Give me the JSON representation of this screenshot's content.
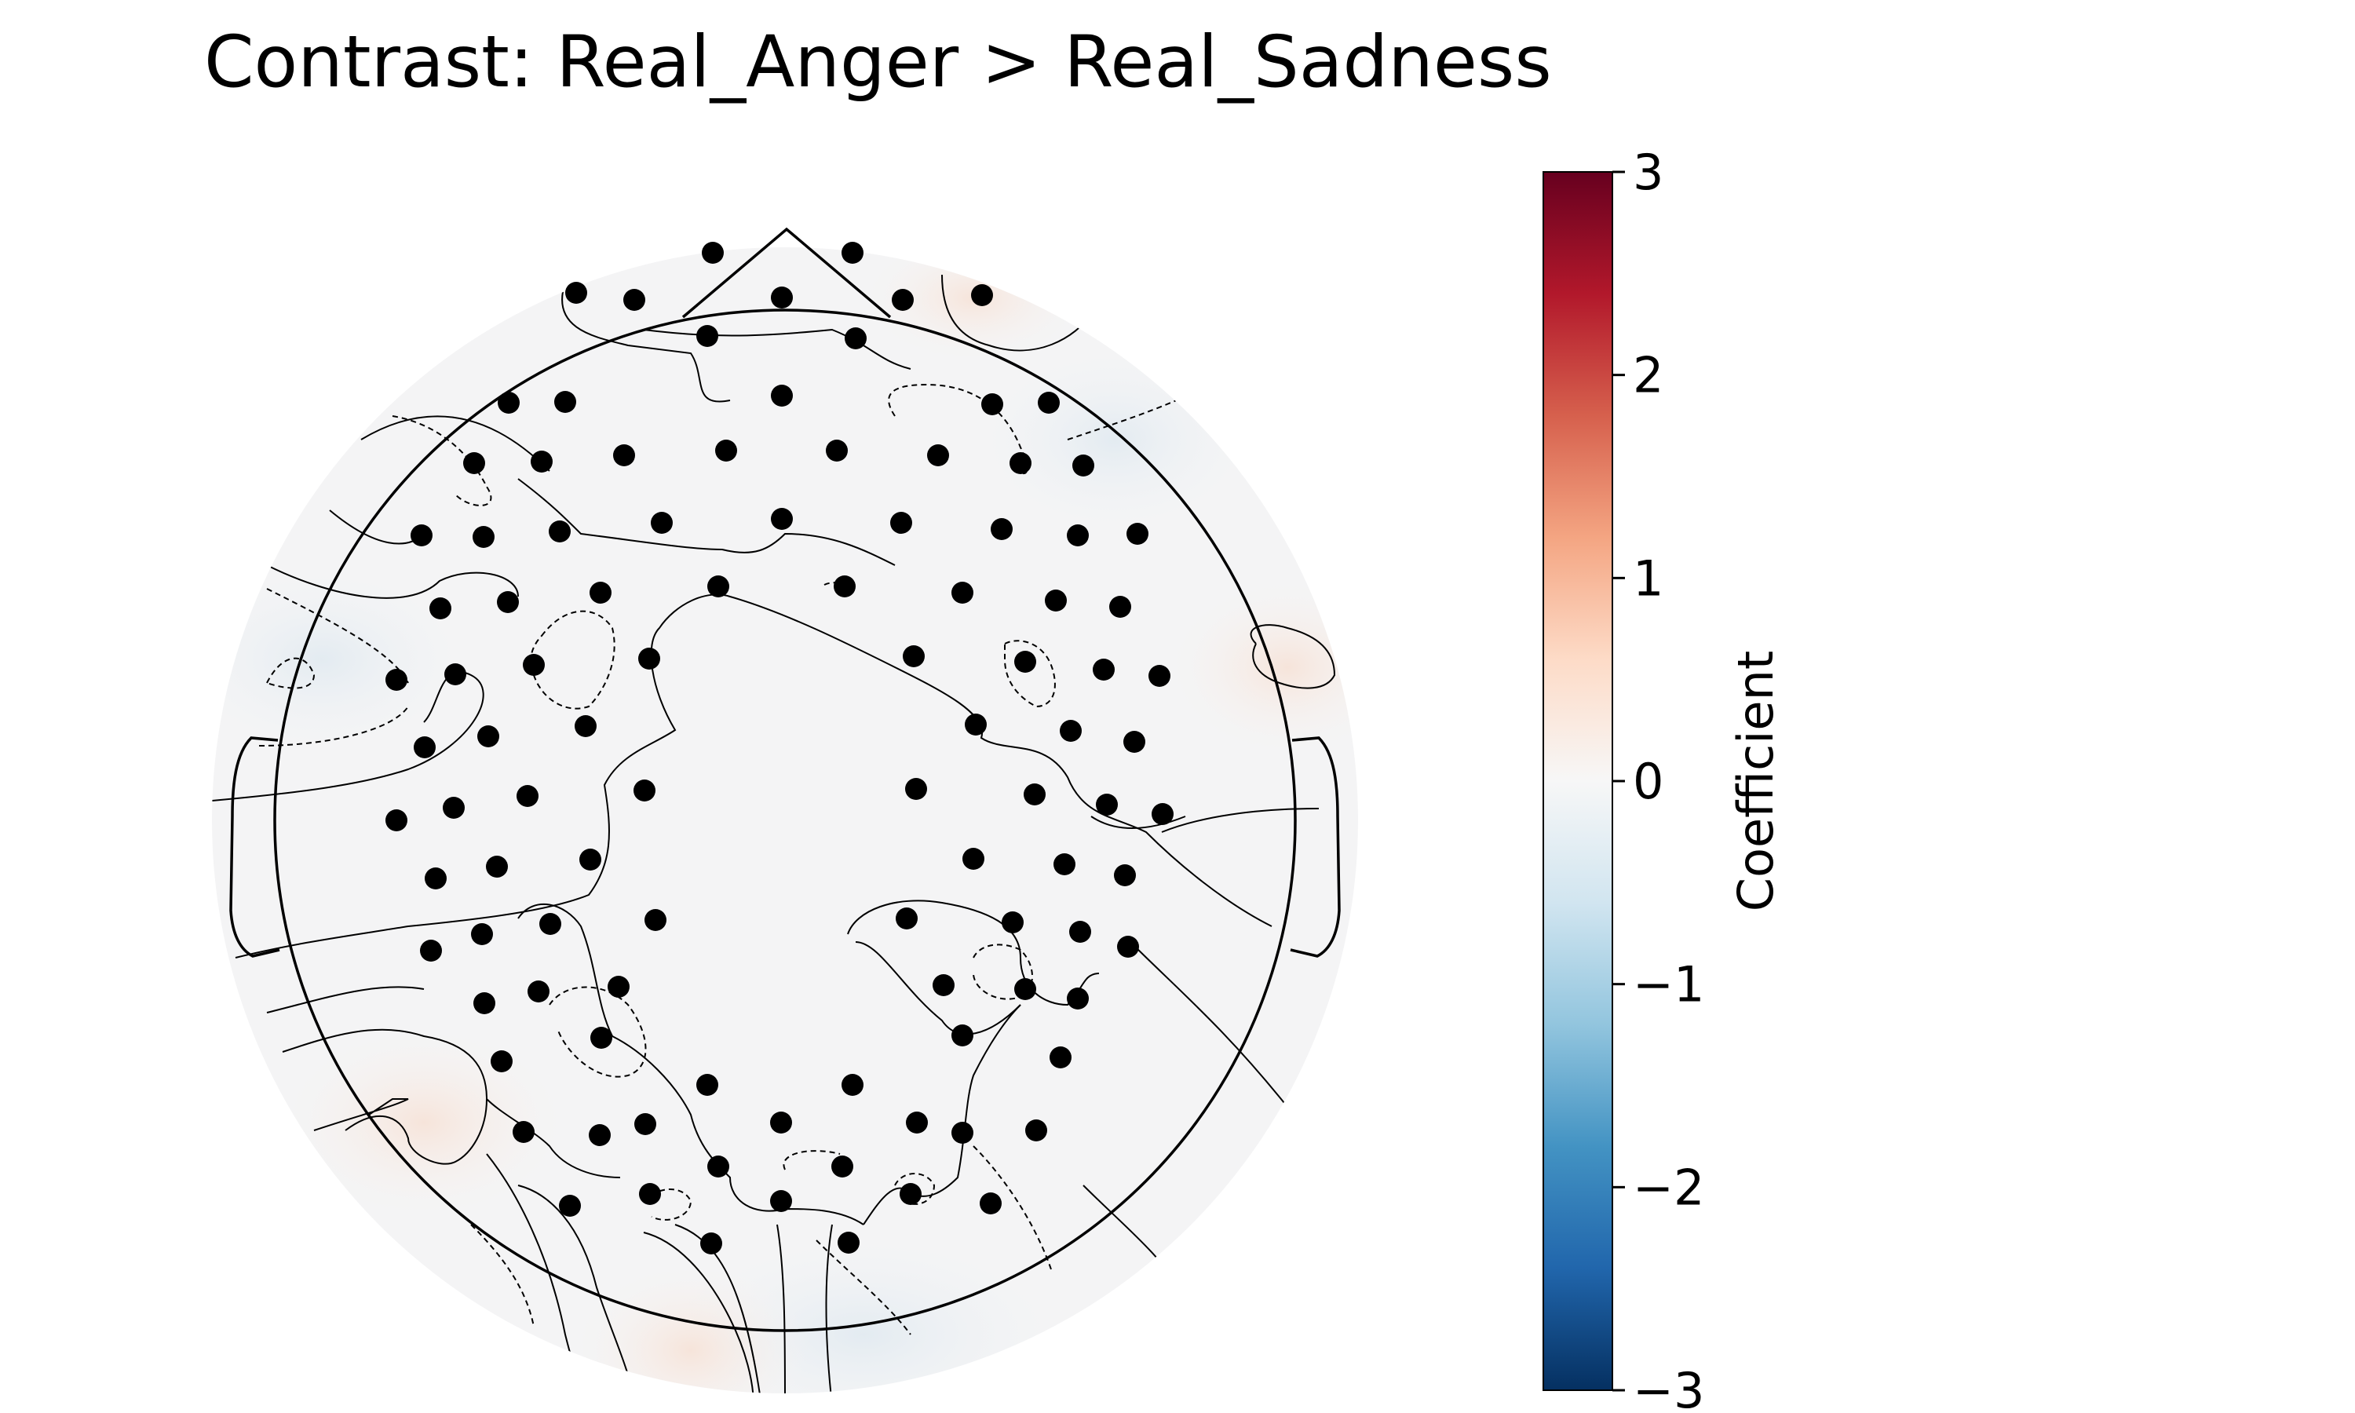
{
  "chart_data": {
    "type": "heatmap",
    "subtype": "eeg-topomap",
    "title": "Contrast: Real_Anger > Real_Sadness",
    "colorbar": {
      "label": "Coefficient",
      "colormap": "RdBu_r",
      "vmin": -3,
      "vmax": 3,
      "ticks": [
        {
          "value": 3,
          "label": "3"
        },
        {
          "value": 2,
          "label": "2"
        },
        {
          "value": 1,
          "label": "1"
        },
        {
          "value": 0,
          "label": "0"
        },
        {
          "value": -1,
          "label": "−1"
        },
        {
          "value": -2,
          "label": "−2"
        },
        {
          "value": -3,
          "label": "−3"
        }
      ]
    },
    "value_range_observed": [
      -0.2,
      0.2
    ],
    "colors": {
      "dark_red": "#67001f",
      "red": "#b2182b",
      "salmon": "#d6604d",
      "peach": "#f4a582",
      "light_peach": "#fddbc7",
      "white": "#f7f7f7",
      "light_blue": "#d1e5f0",
      "sky": "#92c5de",
      "blue": "#4393c3",
      "mid_blue": "#2166ac",
      "dark_blue": "#053061"
    },
    "sensor_count": 128
  }
}
